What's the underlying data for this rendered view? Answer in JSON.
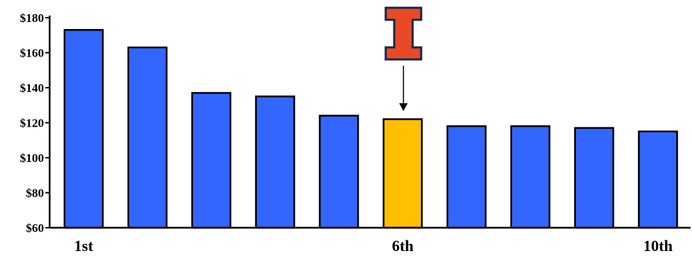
{
  "chart_data": {
    "type": "bar",
    "categories": [
      "1st",
      "",
      "",
      "",
      "",
      "6th",
      "",
      "",
      "",
      "10th"
    ],
    "values": [
      173,
      163,
      137,
      135,
      124,
      122,
      118,
      118,
      117,
      115
    ],
    "ylim": [
      60,
      180
    ],
    "yticks": [
      60,
      80,
      100,
      120,
      140,
      160,
      180
    ],
    "ytick_labels": [
      "$60",
      "$80",
      "$100",
      "$120",
      "$140",
      "$160",
      "$180"
    ],
    "bar_color": "#3366ff",
    "highlight_index": 5,
    "highlight_color": "#ffc000",
    "annotation": {
      "icon": "block-i-logo-icon",
      "fill": "#e84a27",
      "stroke": "#13294b"
    },
    "grid": false,
    "legend": "none"
  }
}
